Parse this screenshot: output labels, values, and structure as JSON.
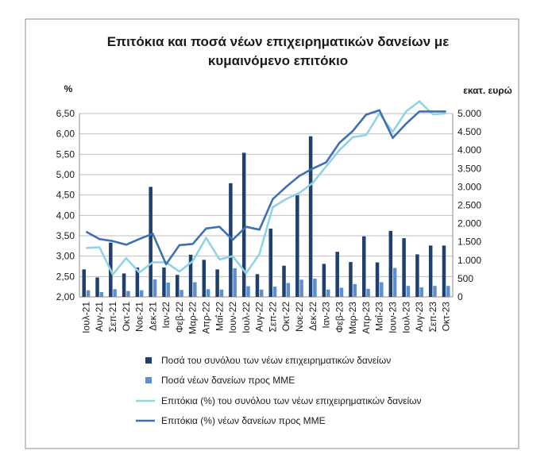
{
  "chart_data": {
    "type": "bar-line combo",
    "title_lines": [
      "Επιτόκια και ποσά νέων επιχειρηματικών δανείων με",
      "κυμαινόμενο επιτόκιο"
    ],
    "left_axis": {
      "unit": "%",
      "ylim": [
        2.0,
        6.5
      ],
      "ticks": [
        "2,00",
        "2,50",
        "3,00",
        "3,50",
        "4,00",
        "4,50",
        "5,00",
        "5,50",
        "6,00",
        "6,50"
      ],
      "tick_values": [
        2.0,
        2.5,
        3.0,
        3.5,
        4.0,
        4.5,
        5.0,
        5.5,
        6.0,
        6.5
      ]
    },
    "right_axis": {
      "unit": "εκατ. ευρώ",
      "ylim": [
        0,
        5000
      ],
      "ticks": [
        "0",
        "500",
        "1.000",
        "1.500",
        "2.000",
        "2.500",
        "3.000",
        "3.500",
        "4.000",
        "4.500",
        "5.000"
      ],
      "tick_values": [
        0,
        500,
        1000,
        1500,
        2000,
        2500,
        3000,
        3500,
        4000,
        4500,
        5000
      ]
    },
    "categories": [
      "Ιουλ-21",
      "Αυγ-21",
      "Σεπ-21",
      "Οκτ-21",
      "Νοε-21",
      "Δεκ-21",
      "Ιαν-22",
      "Φεβ-22",
      "Μαρ-22",
      "Απρ-22",
      "Μαΐ-22",
      "Ιουν-22",
      "Ιουλ-22",
      "Αυγ-22",
      "Σεπ-22",
      "Οκτ-22",
      "Νοε-22",
      "Δεκ-22",
      "Ιαν-23",
      "Φεβ-23",
      "Μαρ-23",
      "Απρ-23",
      "Μαΐ-23",
      "Ιουν-23",
      "Ιουλ-23",
      "Αυγ-23",
      "Σεπ-23",
      "Οκτ-23"
    ],
    "series": [
      {
        "name": "Ποσά του συνόλου των νέων επιχειρηματικών δανείων",
        "kind": "bar",
        "axis": "right",
        "color": "#1f3f6e",
        "values": [
          750,
          530,
          1480,
          640,
          800,
          3000,
          800,
          600,
          1150,
          1010,
          750,
          3100,
          3930,
          620,
          1860,
          850,
          2770,
          4380,
          900,
          1230,
          950,
          1650,
          940,
          1800,
          1600,
          1160,
          1400,
          1400
        ]
      },
      {
        "name": "Ποσά νέων δανείων προς ΜΜΕ",
        "kind": "bar",
        "axis": "right",
        "color": "#5b8fd1",
        "values": [
          180,
          130,
          210,
          160,
          180,
          480,
          390,
          190,
          400,
          210,
          200,
          780,
          290,
          200,
          280,
          380,
          470,
          500,
          200,
          250,
          350,
          220,
          400,
          790,
          300,
          260,
          300,
          300
        ]
      },
      {
        "name": "Επιτόκια (%) του συνόλου των νέων επιχειρηματικών δανείων",
        "kind": "line",
        "axis": "left",
        "color": "#8fd3e6",
        "values": [
          3.2,
          3.22,
          2.55,
          2.95,
          2.6,
          2.85,
          2.85,
          2.62,
          2.88,
          3.45,
          2.92,
          3.0,
          2.58,
          3.05,
          4.2,
          4.4,
          4.55,
          4.8,
          5.2,
          5.6,
          5.92,
          5.97,
          6.5,
          6.05,
          6.55,
          6.8,
          6.48,
          6.5
        ]
      },
      {
        "name": "Επιτόκια (%) νέων δανείων προς ΜΜΕ",
        "kind": "line",
        "axis": "left",
        "color": "#3f6fb4",
        "values": [
          3.6,
          3.42,
          3.37,
          3.28,
          3.42,
          3.55,
          2.8,
          3.27,
          3.3,
          3.68,
          3.72,
          3.4,
          3.72,
          3.65,
          4.4,
          4.7,
          4.97,
          5.15,
          5.3,
          5.78,
          6.07,
          6.47,
          6.58,
          5.9,
          6.25,
          6.55,
          6.55,
          6.55
        ]
      }
    ],
    "legend_position": "bottom"
  }
}
